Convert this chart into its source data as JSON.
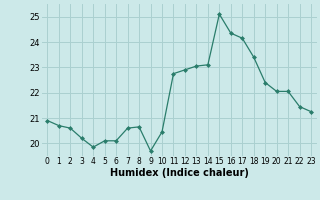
{
  "x": [
    0,
    1,
    2,
    3,
    4,
    5,
    6,
    7,
    8,
    9,
    10,
    11,
    12,
    13,
    14,
    15,
    16,
    17,
    18,
    19,
    20,
    21,
    22,
    23
  ],
  "y": [
    20.9,
    20.7,
    20.6,
    20.2,
    19.85,
    20.1,
    20.1,
    20.6,
    20.65,
    19.7,
    20.45,
    22.75,
    22.9,
    23.05,
    23.1,
    25.1,
    24.35,
    24.15,
    23.4,
    22.4,
    22.05,
    22.05,
    21.45,
    21.25
  ],
  "xlabel": "Humidex (Indice chaleur)",
  "ylabel": "",
  "ylim": [
    19.5,
    25.5
  ],
  "xlim": [
    -0.5,
    23.5
  ],
  "line_color": "#2a7d6b",
  "marker_color": "#2a7d6b",
  "bg_color": "#cce9e9",
  "grid_color": "#aad0d0",
  "yticks": [
    20,
    21,
    22,
    23,
    24,
    25
  ],
  "xticks": [
    0,
    1,
    2,
    3,
    4,
    5,
    6,
    7,
    8,
    9,
    10,
    11,
    12,
    13,
    14,
    15,
    16,
    17,
    18,
    19,
    20,
    21,
    22,
    23
  ],
  "tick_fontsize": 5.5,
  "xlabel_fontsize": 7,
  "ytick_fontsize": 6
}
